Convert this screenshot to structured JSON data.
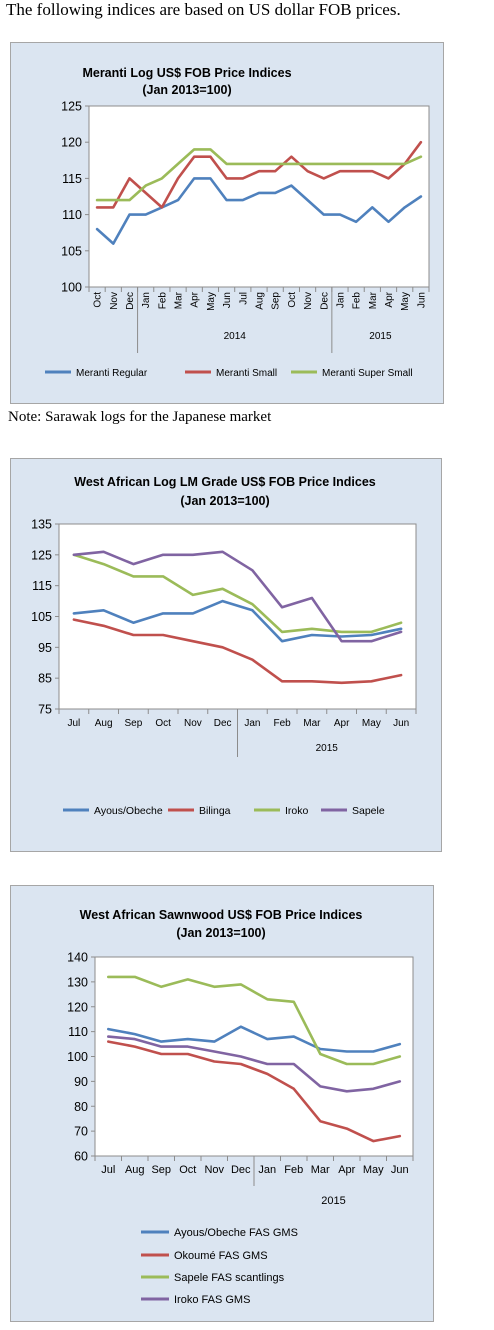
{
  "intro_text": "The following indices are based on US dollar FOB prices.",
  "note_text": "Note: Sarawak logs for the Japanese market",
  "chart_data": [
    {
      "type": "line",
      "title": "Meranti Log US$ FOB Price Indices",
      "subtitle": "(Jan 2013=100)",
      "categories": [
        "Oct",
        "Nov",
        "Dec",
        "Jan",
        "Feb",
        "Mar",
        "Apr",
        "May",
        "Jun",
        "Jul",
        "Aug",
        "Sep",
        "Oct",
        "Nov",
        "Dec",
        "Jan",
        "Feb",
        "Mar",
        "Apr",
        "May",
        "Jun"
      ],
      "year_groups": [
        {
          "label": "",
          "start": 0,
          "end": 2
        },
        {
          "label": "2014",
          "start": 3,
          "end": 14
        },
        {
          "label": "2015",
          "start": 15,
          "end": 20
        }
      ],
      "ylim": [
        100,
        125
      ],
      "yticks": [
        100,
        105,
        110,
        115,
        120,
        125
      ],
      "series": [
        {
          "name": "Meranti Regular",
          "color": "#4f81bd",
          "values": [
            108,
            106,
            110,
            110,
            111,
            112,
            115,
            115,
            112,
            112,
            113,
            113,
            114,
            112,
            110,
            110,
            109,
            111,
            109,
            111,
            112.5
          ]
        },
        {
          "name": "Meranti Small",
          "color": "#c0504d",
          "values": [
            111,
            111,
            115,
            113,
            111,
            115,
            118,
            118,
            115,
            115,
            116,
            116,
            118,
            116,
            115,
            116,
            116,
            116,
            115,
            117,
            120
          ]
        },
        {
          "name": "Meranti Super Small",
          "color": "#9bbb59",
          "values": [
            112,
            112,
            112,
            114,
            115,
            117,
            119,
            119,
            117,
            117,
            117,
            117,
            117,
            117,
            117,
            117,
            117,
            117,
            117,
            117,
            118
          ]
        }
      ]
    },
    {
      "type": "line",
      "title": "West African Log LM Grade US$ FOB Price Indices",
      "subtitle": "(Jan 2013=100)",
      "categories": [
        "Jul",
        "Aug",
        "Sep",
        "Oct",
        "Nov",
        "Dec",
        "Jan",
        "Feb",
        "Mar",
        "Apr",
        "May",
        "Jun"
      ],
      "year_groups": [
        {
          "label": "",
          "start": 0,
          "end": 5
        },
        {
          "label": "2015",
          "start": 6,
          "end": 11
        }
      ],
      "ylim": [
        75,
        135
      ],
      "yticks": [
        75,
        85,
        95,
        105,
        115,
        125,
        135
      ],
      "series": [
        {
          "name": "Ayous/Obeche",
          "color": "#4f81bd",
          "values": [
            106,
            107,
            103,
            106,
            106,
            110,
            107,
            97,
            99,
            98.5,
            99,
            101
          ]
        },
        {
          "name": "Bilinga",
          "color": "#c0504d",
          "values": [
            104,
            102,
            99,
            99,
            97,
            95,
            91,
            84,
            84,
            83.5,
            84,
            86
          ]
        },
        {
          "name": "Iroko",
          "color": "#9bbb59",
          "values": [
            125,
            122,
            118,
            118,
            112,
            114,
            109,
            100,
            101,
            100,
            100,
            103
          ]
        },
        {
          "name": "Sapele",
          "color": "#8064a2",
          "values": [
            125,
            126,
            122,
            125,
            125,
            126,
            120,
            108,
            111,
            97,
            97,
            100
          ]
        }
      ]
    },
    {
      "type": "line",
      "title": "West African Sawnwood US$ FOB Price Indices",
      "subtitle": "(Jan 2013=100)",
      "categories": [
        "Jul",
        "Aug",
        "Sep",
        "Oct",
        "Nov",
        "Dec",
        "Jan",
        "Feb",
        "Mar",
        "Apr",
        "May",
        "Jun"
      ],
      "year_groups": [
        {
          "label": "",
          "start": 0,
          "end": 5
        },
        {
          "label": "2015",
          "start": 6,
          "end": 11
        }
      ],
      "ylim": [
        60,
        140
      ],
      "yticks": [
        60,
        70,
        80,
        90,
        100,
        110,
        120,
        130,
        140
      ],
      "series": [
        {
          "name": "Ayous/Obeche  FAS GMS",
          "color": "#4f81bd",
          "values": [
            111,
            109,
            106,
            107,
            106,
            112,
            107,
            108,
            103,
            102,
            102,
            105
          ]
        },
        {
          "name": "Okoumé  FAS GMS",
          "color": "#c0504d",
          "values": [
            106,
            104,
            101,
            101,
            98,
            97,
            93,
            87,
            74,
            71,
            66,
            68
          ]
        },
        {
          "name": "Sapele FAS scantlings",
          "color": "#9bbb59",
          "values": [
            132,
            132,
            128,
            131,
            128,
            129,
            123,
            122,
            101,
            97,
            97,
            100
          ]
        },
        {
          "name": "Iroko FAS GMS",
          "color": "#8064a2",
          "values": [
            108,
            107,
            104,
            104,
            102,
            100,
            97,
            97,
            88,
            86,
            87,
            90
          ]
        }
      ]
    }
  ]
}
